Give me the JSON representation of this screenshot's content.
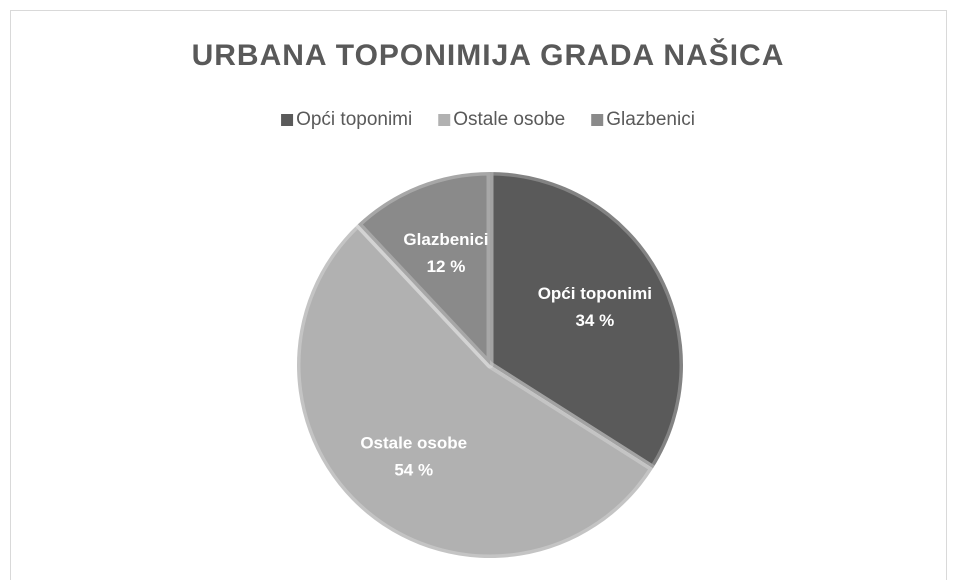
{
  "chart_data": {
    "type": "pie",
    "title": "URBANA TOPONIMIJA GRADA NAŠICA",
    "categories": [
      "Opći toponimi",
      "Ostale osobe",
      "Glazbenici"
    ],
    "values": [
      34,
      54,
      12
    ],
    "value_labels": [
      "34 %",
      "54 %",
      "12 %"
    ],
    "colors": [
      "#5a5a5a",
      "#b1b1b1",
      "#8a8a8a"
    ],
    "legend": "top"
  }
}
